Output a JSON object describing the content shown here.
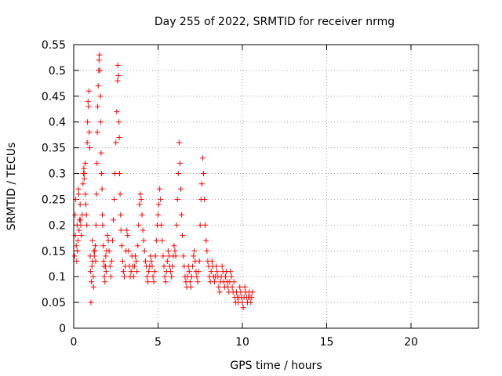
{
  "chart_data": {
    "type": "scatter",
    "title": "Day 255 of 2022, SRMTID for receiver nrmg",
    "xlabel": "GPS time / hours",
    "ylabel": "SRMTID / TECUs",
    "xlim": [
      0,
      24
    ],
    "ylim": [
      0,
      0.55
    ],
    "xticks": [
      0,
      5,
      10,
      15,
      20
    ],
    "yticks": [
      0,
      0.05,
      0.1,
      0.15,
      0.2,
      0.25,
      0.3,
      0.35,
      0.4,
      0.45,
      0.5,
      0.55
    ],
    "grid": true,
    "marker": "+",
    "series": [
      {
        "name": "nrmg",
        "color": "#ff0000",
        "points": [
          [
            0.05,
            0.14
          ],
          [
            0.08,
            0.22
          ],
          [
            0.1,
            0.18
          ],
          [
            0.12,
            0.25
          ],
          [
            0.15,
            0.16
          ],
          [
            0.18,
            0.13
          ],
          [
            0.2,
            0.2
          ],
          [
            0.22,
            0.15
          ],
          [
            0.25,
            0.17
          ],
          [
            0.28,
            0.27
          ],
          [
            0.3,
            0.26
          ],
          [
            0.32,
            0.19
          ],
          [
            0.35,
            0.21
          ],
          [
            0.38,
            0.24
          ],
          [
            0.4,
            0.21
          ],
          [
            0.42,
            0.2
          ],
          [
            0.45,
            0.18
          ],
          [
            0.5,
            0.22
          ],
          [
            0.55,
            0.28
          ],
          [
            0.58,
            0.3
          ],
          [
            0.6,
            0.31
          ],
          [
            0.62,
            0.29
          ],
          [
            0.65,
            0.3
          ],
          [
            0.68,
            0.32
          ],
          [
            0.7,
            0.26
          ],
          [
            0.72,
            0.24
          ],
          [
            0.75,
            0.22
          ],
          [
            0.78,
            0.2
          ],
          [
            0.8,
            0.36
          ],
          [
            0.82,
            0.4
          ],
          [
            0.85,
            0.44
          ],
          [
            0.88,
            0.43
          ],
          [
            0.9,
            0.46
          ],
          [
            0.92,
            0.38
          ],
          [
            0.95,
            0.35
          ],
          [
            0.98,
            0.14
          ],
          [
            1.0,
            0.11
          ],
          [
            1.02,
            0.05
          ],
          [
            1.05,
            0.09
          ],
          [
            1.08,
            0.12
          ],
          [
            1.1,
            0.17
          ],
          [
            1.12,
            0.13
          ],
          [
            1.15,
            0.1
          ],
          [
            1.18,
            0.08
          ],
          [
            1.2,
            0.15
          ],
          [
            1.22,
            0.14
          ],
          [
            1.25,
            0.15
          ],
          [
            1.28,
            0.16
          ],
          [
            1.3,
            0.13
          ],
          [
            1.32,
            0.2
          ],
          [
            1.35,
            0.26
          ],
          [
            1.38,
            0.32
          ],
          [
            1.4,
            0.38
          ],
          [
            1.42,
            0.43
          ],
          [
            1.45,
            0.47
          ],
          [
            1.48,
            0.5
          ],
          [
            1.5,
            0.52
          ],
          [
            1.52,
            0.53
          ],
          [
            1.55,
            0.5
          ],
          [
            1.58,
            0.45
          ],
          [
            1.6,
            0.4
          ],
          [
            1.62,
            0.34
          ],
          [
            1.65,
            0.3
          ],
          [
            1.68,
            0.27
          ],
          [
            1.7,
            0.22
          ],
          [
            1.72,
            0.2
          ],
          [
            1.75,
            0.16
          ],
          [
            1.78,
            0.13
          ],
          [
            1.8,
            0.12
          ],
          [
            1.82,
            0.1
          ],
          [
            1.85,
            0.09
          ],
          [
            1.88,
            0.12
          ],
          [
            1.9,
            0.14
          ],
          [
            1.92,
            0.11
          ],
          [
            1.95,
            0.15
          ],
          [
            2.0,
            0.18
          ],
          [
            2.05,
            0.17
          ],
          [
            2.1,
            0.15
          ],
          [
            2.15,
            0.12
          ],
          [
            2.2,
            0.1
          ],
          [
            2.25,
            0.13
          ],
          [
            2.3,
            0.17
          ],
          [
            2.35,
            0.21
          ],
          [
            2.4,
            0.25
          ],
          [
            2.45,
            0.3
          ],
          [
            2.5,
            0.36
          ],
          [
            2.55,
            0.42
          ],
          [
            2.6,
            0.48
          ],
          [
            2.62,
            0.51
          ],
          [
            2.65,
            0.49
          ],
          [
            2.68,
            0.4
          ],
          [
            2.7,
            0.37
          ],
          [
            2.72,
            0.3
          ],
          [
            2.75,
            0.26
          ],
          [
            2.78,
            0.22
          ],
          [
            2.8,
            0.19
          ],
          [
            2.85,
            0.16
          ],
          [
            2.9,
            0.13
          ],
          [
            2.95,
            0.11
          ],
          [
            3.0,
            0.1
          ],
          [
            3.05,
            0.12
          ],
          [
            3.1,
            0.15
          ],
          [
            3.15,
            0.19
          ],
          [
            3.2,
            0.18
          ],
          [
            3.25,
            0.15
          ],
          [
            3.3,
            0.12
          ],
          [
            3.35,
            0.1
          ],
          [
            3.4,
            0.11
          ],
          [
            3.45,
            0.14
          ],
          [
            3.5,
            0.12
          ],
          [
            3.55,
            0.1
          ],
          [
            3.6,
            0.12
          ],
          [
            3.65,
            0.14
          ],
          [
            3.7,
            0.13
          ],
          [
            3.75,
            0.11
          ],
          [
            3.8,
            0.16
          ],
          [
            3.85,
            0.2
          ],
          [
            3.9,
            0.24
          ],
          [
            3.95,
            0.26
          ],
          [
            4.0,
            0.25
          ],
          [
            4.05,
            0.22
          ],
          [
            4.1,
            0.19
          ],
          [
            4.15,
            0.17
          ],
          [
            4.2,
            0.15
          ],
          [
            4.25,
            0.13
          ],
          [
            4.3,
            0.12
          ],
          [
            4.35,
            0.1
          ],
          [
            4.4,
            0.09
          ],
          [
            4.45,
            0.11
          ],
          [
            4.5,
            0.12
          ],
          [
            4.55,
            0.14
          ],
          [
            4.6,
            0.13
          ],
          [
            4.65,
            0.12
          ],
          [
            4.7,
            0.1
          ],
          [
            4.75,
            0.09
          ],
          [
            4.8,
            0.11
          ],
          [
            4.85,
            0.14
          ],
          [
            4.9,
            0.17
          ],
          [
            4.95,
            0.2
          ],
          [
            5.0,
            0.22
          ],
          [
            5.05,
            0.24
          ],
          [
            5.1,
            0.27
          ],
          [
            5.15,
            0.25
          ],
          [
            5.2,
            0.2
          ],
          [
            5.25,
            0.17
          ],
          [
            5.3,
            0.14
          ],
          [
            5.35,
            0.12
          ],
          [
            5.4,
            0.1
          ],
          [
            5.45,
            0.09
          ],
          [
            5.5,
            0.11
          ],
          [
            5.55,
            0.13
          ],
          [
            5.6,
            0.15
          ],
          [
            5.65,
            0.14
          ],
          [
            5.7,
            0.12
          ],
          [
            5.75,
            0.11
          ],
          [
            5.8,
            0.1
          ],
          [
            5.85,
            0.12
          ],
          [
            5.9,
            0.14
          ],
          [
            5.95,
            0.16
          ],
          [
            6.0,
            0.15
          ],
          [
            6.05,
            0.14
          ],
          [
            6.1,
            0.2
          ],
          [
            6.15,
            0.25
          ],
          [
            6.2,
            0.3
          ],
          [
            6.25,
            0.36
          ],
          [
            6.3,
            0.32
          ],
          [
            6.35,
            0.27
          ],
          [
            6.4,
            0.22
          ],
          [
            6.45,
            0.18
          ],
          [
            6.5,
            0.14
          ],
          [
            6.55,
            0.12
          ],
          [
            6.6,
            0.1
          ],
          [
            6.65,
            0.09
          ],
          [
            6.7,
            0.08
          ],
          [
            6.75,
            0.1
          ],
          [
            6.8,
            0.12
          ],
          [
            6.85,
            0.11
          ],
          [
            6.9,
            0.09
          ],
          [
            6.95,
            0.08
          ],
          [
            7.0,
            0.1
          ],
          [
            7.05,
            0.12
          ],
          [
            7.1,
            0.14
          ],
          [
            7.15,
            0.15
          ],
          [
            7.2,
            0.13
          ],
          [
            7.25,
            0.11
          ],
          [
            7.3,
            0.1
          ],
          [
            7.35,
            0.09
          ],
          [
            7.4,
            0.11
          ],
          [
            7.45,
            0.13
          ],
          [
            7.5,
            0.2
          ],
          [
            7.55,
            0.25
          ],
          [
            7.6,
            0.28
          ],
          [
            7.65,
            0.33
          ],
          [
            7.7,
            0.3
          ],
          [
            7.75,
            0.25
          ],
          [
            7.8,
            0.2
          ],
          [
            7.85,
            0.17
          ],
          [
            7.9,
            0.15
          ],
          [
            7.95,
            0.13
          ],
          [
            8.0,
            0.12
          ],
          [
            8.05,
            0.1
          ],
          [
            8.1,
            0.09
          ],
          [
            8.15,
            0.11
          ],
          [
            8.2,
            0.13
          ],
          [
            8.25,
            0.12
          ],
          [
            8.3,
            0.1
          ],
          [
            8.35,
            0.09
          ],
          [
            8.4,
            0.1
          ],
          [
            8.45,
            0.12
          ],
          [
            8.5,
            0.11
          ],
          [
            8.55,
            0.1
          ],
          [
            8.6,
            0.08
          ],
          [
            8.65,
            0.07
          ],
          [
            8.7,
            0.09
          ],
          [
            8.75,
            0.1
          ],
          [
            8.8,
            0.12
          ],
          [
            8.85,
            0.11
          ],
          [
            8.9,
            0.09
          ],
          [
            8.95,
            0.08
          ],
          [
            9.0,
            0.1
          ],
          [
            9.05,
            0.11
          ],
          [
            9.1,
            0.09
          ],
          [
            9.15,
            0.08
          ],
          [
            9.2,
            0.07
          ],
          [
            9.25,
            0.09
          ],
          [
            9.3,
            0.11
          ],
          [
            9.35,
            0.1
          ],
          [
            9.4,
            0.08
          ],
          [
            9.45,
            0.07
          ],
          [
            9.5,
            0.09
          ],
          [
            9.55,
            0.06
          ],
          [
            9.6,
            0.05
          ],
          [
            9.65,
            0.07
          ],
          [
            9.7,
            0.06
          ],
          [
            9.75,
            0.05
          ],
          [
            9.8,
            0.06
          ],
          [
            9.85,
            0.08
          ],
          [
            9.9,
            0.07
          ],
          [
            9.95,
            0.06
          ],
          [
            10.0,
            0.05
          ],
          [
            10.05,
            0.04
          ],
          [
            10.1,
            0.06
          ],
          [
            10.15,
            0.08
          ],
          [
            10.2,
            0.07
          ],
          [
            10.25,
            0.06
          ],
          [
            10.3,
            0.05
          ],
          [
            10.35,
            0.06
          ],
          [
            10.4,
            0.07
          ],
          [
            10.45,
            0.06
          ],
          [
            10.5,
            0.05
          ],
          [
            10.55,
            0.06
          ],
          [
            10.6,
            0.07
          ]
        ]
      }
    ]
  }
}
